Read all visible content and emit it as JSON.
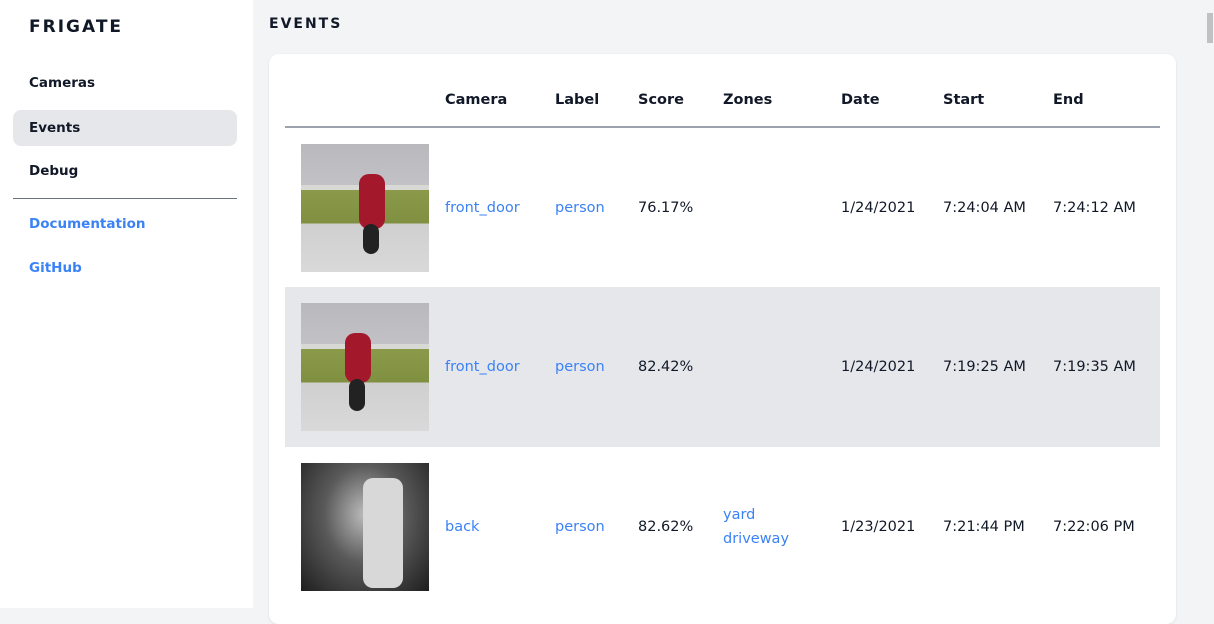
{
  "sidebar": {
    "brand": "FRIGATE",
    "items": [
      {
        "label": "Cameras"
      },
      {
        "label": "Events",
        "active": true
      },
      {
        "label": "Debug"
      }
    ],
    "links": [
      {
        "label": "Documentation"
      },
      {
        "label": "GitHub"
      }
    ]
  },
  "page": {
    "title": "EVENTS"
  },
  "table": {
    "headers": [
      "",
      "Camera",
      "Label",
      "Score",
      "Zones",
      "Date",
      "Start",
      "End"
    ],
    "rows": [
      {
        "camera": "front_door",
        "label": "person",
        "score": "76.17%",
        "zones": [
          "",
          ""
        ],
        "date": "1/24/2021",
        "start": "7:24:04 AM",
        "end": "7:24:12 AM"
      },
      {
        "camera": "front_door",
        "label": "person",
        "score": "82.42%",
        "zones": [
          "",
          ""
        ],
        "date": "1/24/2021",
        "start": "7:19:25 AM",
        "end": "7:19:35 AM"
      },
      {
        "camera": "back",
        "label": "person",
        "score": "82.62%",
        "zones": [
          "yard",
          "driveway"
        ],
        "date": "1/23/2021",
        "start": "7:21:44 PM",
        "end": "7:22:06 PM"
      }
    ]
  },
  "colors": {
    "link": "#3b82f6",
    "active_bg": "#e5e7eb",
    "alt_row": "#e5e7eb"
  }
}
